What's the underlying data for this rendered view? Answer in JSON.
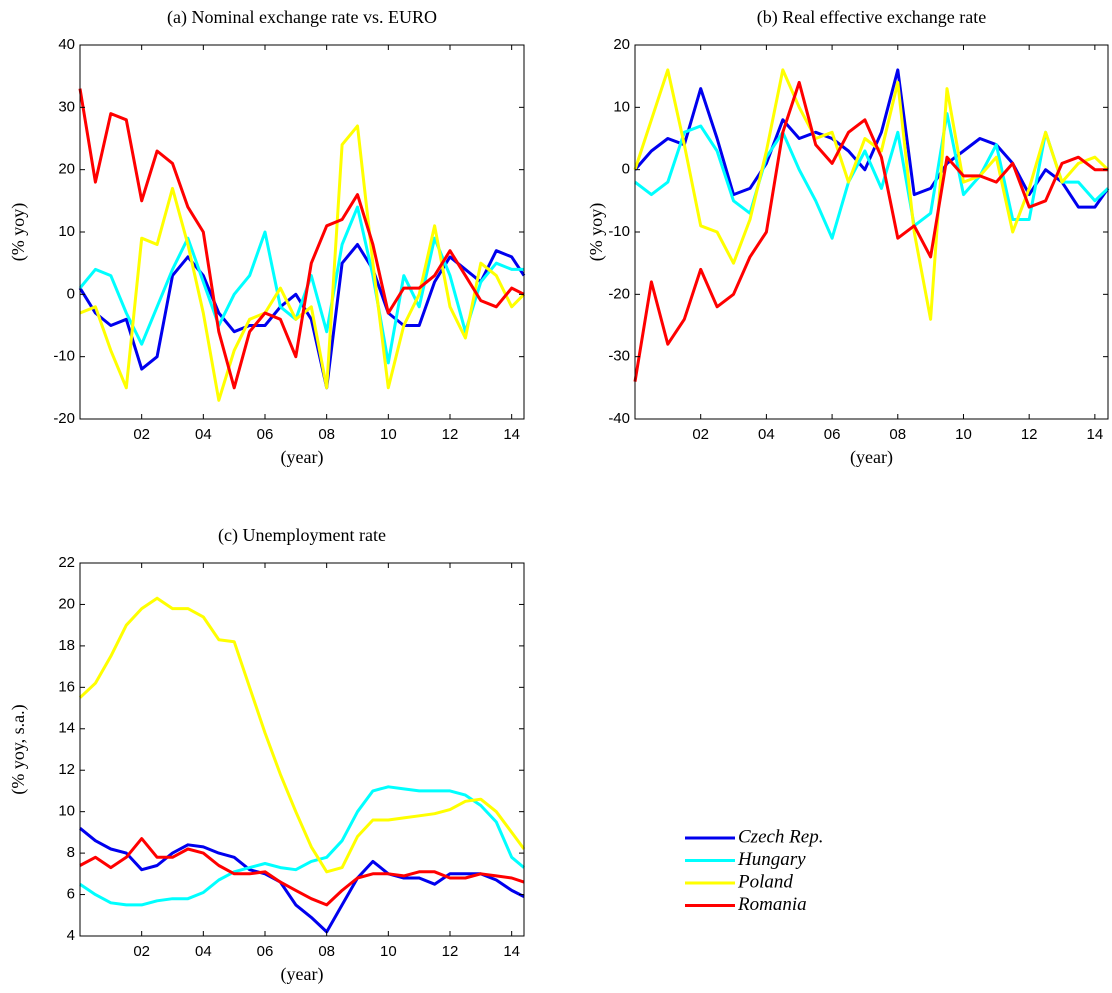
{
  "chart_data": [
    {
      "type": "line",
      "title": "(a) Nominal exchange rate vs. EURO",
      "x_label": "(year)",
      "y_label": "(% yoy)",
      "x": [
        0,
        0.5,
        1,
        1.5,
        2,
        2.5,
        3,
        3.5,
        4,
        4.5,
        5,
        5.5,
        6,
        6.5,
        7,
        7.5,
        8,
        8.5,
        9,
        9.5,
        10,
        10.5,
        11,
        11.5,
        12,
        12.5,
        13,
        13.5,
        14,
        14.4
      ],
      "xlim": [
        0,
        14.4
      ],
      "xticks": [
        {
          "value": 2,
          "label": "02"
        },
        {
          "value": 4,
          "label": "04"
        },
        {
          "value": 6,
          "label": "06"
        },
        {
          "value": 8,
          "label": "08"
        },
        10,
        12,
        14
      ],
      "ylim": [
        -20,
        40
      ],
      "yticks": [
        -20,
        -10,
        0,
        10,
        20,
        30,
        40
      ],
      "series": [
        {
          "name": "Czech Rep.",
          "color": "#0000ee",
          "values": [
            1,
            -3,
            -5,
            -4,
            -12,
            -10,
            3,
            6,
            3,
            -3,
            -6,
            -5,
            -5,
            -2,
            0,
            -4,
            -15,
            5,
            8,
            4,
            -3,
            -5,
            -5,
            2,
            6,
            4,
            2,
            7,
            6,
            3
          ]
        },
        {
          "name": "Hungary",
          "color": "#00ffff",
          "values": [
            1,
            4,
            3,
            -3,
            -8,
            -2,
            4,
            9,
            2,
            -5,
            0,
            3,
            10,
            -2,
            -4,
            3,
            -6,
            8,
            14,
            3,
            -11,
            3,
            -2,
            9,
            3,
            -6,
            2,
            5,
            4,
            4
          ]
        },
        {
          "name": "Poland",
          "color": "#ffff00",
          "values": [
            -3,
            -2,
            -9,
            -15,
            9,
            8,
            17,
            8,
            -3,
            -17,
            -9,
            -4,
            -3,
            1,
            -4,
            -2,
            -15,
            24,
            27,
            5,
            -15,
            -5,
            0,
            11,
            -2,
            -7,
            5,
            3,
            -2,
            0
          ]
        },
        {
          "name": "Romania",
          "color": "#ff0000",
          "values": [
            33,
            18,
            29,
            28,
            15,
            23,
            21,
            14,
            10,
            -6,
            -15,
            -6,
            -3,
            -4,
            -10,
            5,
            11,
            12,
            16,
            8,
            -3,
            1,
            1,
            3,
            7,
            3,
            -1,
            -2,
            1,
            0
          ]
        }
      ]
    },
    {
      "type": "line",
      "title": "(b) Real effective exchange rate",
      "x_label": "(year)",
      "y_label": "(% yoy)",
      "x": [
        0,
        0.5,
        1,
        1.5,
        2,
        2.5,
        3,
        3.5,
        4,
        4.5,
        5,
        5.5,
        6,
        6.5,
        7,
        7.5,
        8,
        8.5,
        9,
        9.5,
        10,
        10.5,
        11,
        11.5,
        12,
        12.5,
        13,
        13.5,
        14,
        14.4
      ],
      "xlim": [
        0,
        14.4
      ],
      "xticks": [
        {
          "value": 2,
          "label": "02"
        },
        {
          "value": 4,
          "label": "04"
        },
        {
          "value": 6,
          "label": "06"
        },
        {
          "value": 8,
          "label": "08"
        },
        10,
        12,
        14
      ],
      "ylim": [
        -40,
        20
      ],
      "yticks": [
        -40,
        -30,
        -20,
        -10,
        0,
        10,
        20
      ],
      "series": [
        {
          "name": "Czech Rep.",
          "color": "#0000ee",
          "values": [
            0,
            3,
            5,
            4,
            13,
            5,
            -4,
            -3,
            1,
            8,
            5,
            6,
            5,
            3,
            0,
            6,
            16,
            -4,
            -3,
            1,
            3,
            5,
            4,
            1,
            -4,
            0,
            -2,
            -6,
            -6,
            -3
          ]
        },
        {
          "name": "Hungary",
          "color": "#00ffff",
          "values": [
            -2,
            -4,
            -2,
            6,
            7,
            3,
            -5,
            -7,
            2,
            6,
            0,
            -5,
            -11,
            -2,
            3,
            -3,
            6,
            -9,
            -7,
            9,
            -4,
            -1,
            4,
            -8,
            -8,
            6,
            -2,
            -2,
            -5,
            -3
          ]
        },
        {
          "name": "Poland",
          "color": "#ffff00",
          "values": [
            0,
            8,
            16,
            4,
            -9,
            -10,
            -15,
            -8,
            3,
            16,
            10,
            5,
            6,
            -2,
            5,
            3,
            14,
            -10,
            -24,
            13,
            -2,
            -1,
            2,
            -10,
            -3,
            6,
            -2,
            1,
            2,
            0
          ]
        },
        {
          "name": "Romania",
          "color": "#ff0000",
          "values": [
            -34,
            -18,
            -28,
            -24,
            -16,
            -22,
            -20,
            -14,
            -10,
            6,
            14,
            4,
            1,
            6,
            8,
            2,
            -11,
            -9,
            -14,
            2,
            -1,
            -1,
            -2,
            1,
            -6,
            -5,
            1,
            2,
            0,
            0
          ]
        }
      ]
    },
    {
      "type": "line",
      "title": "(c) Unemployment rate",
      "x_label": "(year)",
      "y_label": "(% yoy, s.a.)",
      "legend": "outside-right",
      "x": [
        0,
        0.5,
        1,
        1.5,
        2,
        2.5,
        3,
        3.5,
        4,
        4.5,
        5,
        5.5,
        6,
        6.5,
        7,
        7.5,
        8,
        8.5,
        9,
        9.5,
        10,
        10.5,
        11,
        11.5,
        12,
        12.5,
        13,
        13.5,
        14,
        14.4
      ],
      "xlim": [
        0,
        14.4
      ],
      "xticks": [
        {
          "value": 2,
          "label": "02"
        },
        {
          "value": 4,
          "label": "04"
        },
        {
          "value": 6,
          "label": "06"
        },
        {
          "value": 8,
          "label": "08"
        },
        10,
        12,
        14
      ],
      "ylim": [
        4,
        22
      ],
      "yticks": [
        4,
        6,
        8,
        10,
        12,
        14,
        16,
        18,
        20,
        22
      ],
      "series": [
        {
          "name": "Czech Rep.",
          "color": "#0000ee",
          "values": [
            9.2,
            8.6,
            8.2,
            8.0,
            7.2,
            7.4,
            8.0,
            8.4,
            8.3,
            8.0,
            7.8,
            7.2,
            7.0,
            6.6,
            5.5,
            4.9,
            4.2,
            5.5,
            6.8,
            7.6,
            7.0,
            6.8,
            6.8,
            6.5,
            7.0,
            7.0,
            7.0,
            6.7,
            6.2,
            5.9
          ]
        },
        {
          "name": "Hungary",
          "color": "#00ffff",
          "values": [
            6.5,
            6.0,
            5.6,
            5.5,
            5.5,
            5.7,
            5.8,
            5.8,
            6.1,
            6.7,
            7.1,
            7.3,
            7.5,
            7.3,
            7.2,
            7.6,
            7.8,
            8.6,
            10.0,
            11.0,
            11.2,
            11.1,
            11.0,
            11.0,
            11.0,
            10.8,
            10.3,
            9.5,
            7.8,
            7.3
          ]
        },
        {
          "name": "Poland",
          "color": "#ffff00",
          "values": [
            15.5,
            16.2,
            17.5,
            19.0,
            19.8,
            20.3,
            19.8,
            19.8,
            19.4,
            18.3,
            18.2,
            16.0,
            13.8,
            11.8,
            10.0,
            8.3,
            7.1,
            7.3,
            8.8,
            9.6,
            9.6,
            9.7,
            9.8,
            9.9,
            10.1,
            10.5,
            10.6,
            10.0,
            9.0,
            8.2
          ]
        },
        {
          "name": "Romania",
          "color": "#ff0000",
          "values": [
            7.4,
            7.8,
            7.3,
            7.8,
            8.7,
            7.8,
            7.8,
            8.2,
            8.0,
            7.4,
            7.0,
            7.0,
            7.1,
            6.6,
            6.2,
            5.8,
            5.5,
            6.2,
            6.8,
            7.0,
            7.0,
            6.9,
            7.1,
            7.1,
            6.8,
            6.8,
            7.0,
            6.9,
            6.8,
            6.6
          ]
        }
      ]
    }
  ]
}
